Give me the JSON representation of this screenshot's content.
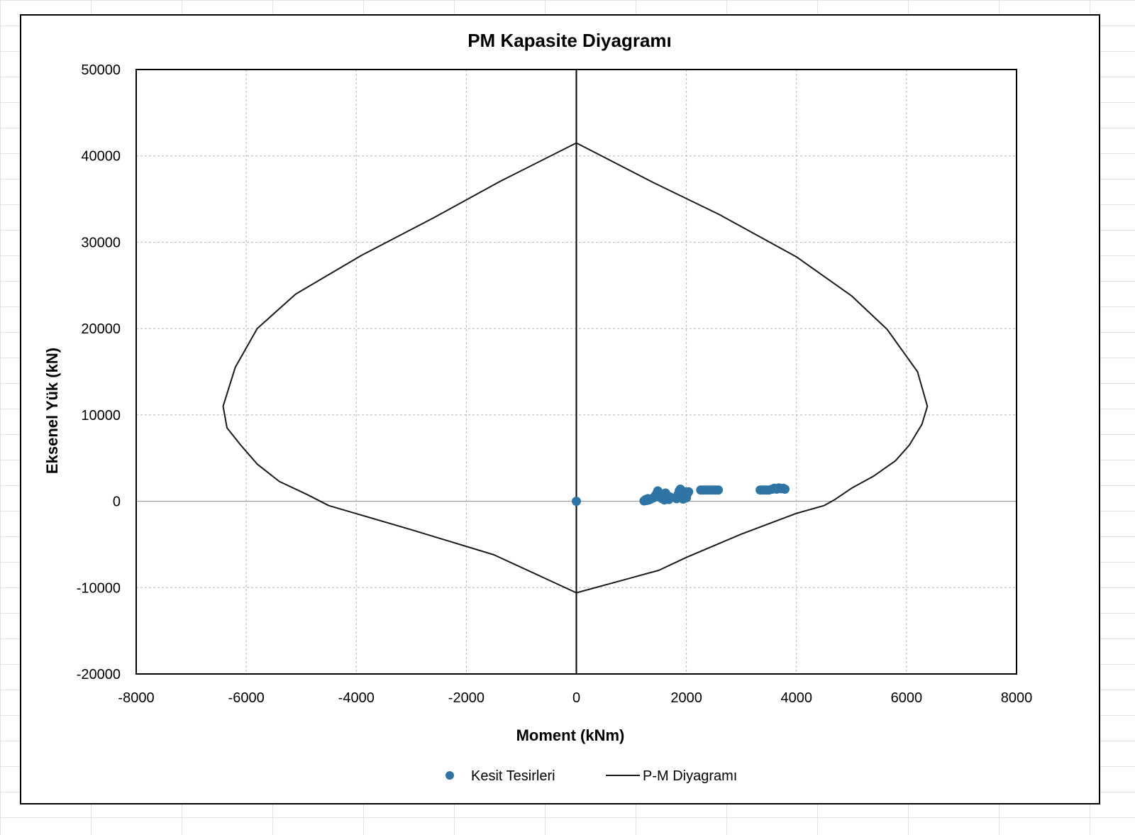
{
  "chart_data": {
    "type": "scatter",
    "title": "PM Kapasite Diyagramı",
    "xlabel": "Moment (kNm)",
    "ylabel": "Eksenel Yük (kN)",
    "xlim": [
      -8000,
      8000
    ],
    "ylim": [
      -20000,
      50000
    ],
    "x_ticks": [
      {
        "value": -8000,
        "label": "-8000"
      },
      {
        "value": -6000,
        "label": "-6000"
      },
      {
        "value": -4000,
        "label": "-4000"
      },
      {
        "value": -2000,
        "label": "-2000"
      },
      {
        "value": 0,
        "label": "0"
      },
      {
        "value": 2000,
        "label": "2000"
      },
      {
        "value": 4000,
        "label": "4000"
      },
      {
        "value": 6000,
        "label": "6000"
      },
      {
        "value": 8000,
        "label": "8000"
      }
    ],
    "y_ticks": [
      {
        "value": 50000,
        "label": "50000"
      },
      {
        "value": 40000,
        "label": "40000"
      },
      {
        "value": 30000,
        "label": "30000"
      },
      {
        "value": 20000,
        "label": "20000"
      },
      {
        "value": 10000,
        "label": "10000"
      },
      {
        "value": 0,
        "label": "0"
      },
      {
        "value": -10000,
        "label": "-10000"
      },
      {
        "value": -20000,
        "label": "-20000"
      }
    ],
    "grid": true,
    "legend_position": "bottom",
    "series": [
      {
        "name": "Kesit Tesirleri",
        "kind": "scatter",
        "color": "#2e75a6",
        "points": [
          [
            0,
            0
          ],
          [
            1230,
            50
          ],
          [
            1260,
            200
          ],
          [
            1280,
            100
          ],
          [
            1300,
            300
          ],
          [
            1320,
            150
          ],
          [
            1350,
            250
          ],
          [
            1400,
            400
          ],
          [
            1430,
            600
          ],
          [
            1460,
            900
          ],
          [
            1480,
            1200
          ],
          [
            1500,
            1000
          ],
          [
            1520,
            500
          ],
          [
            1540,
            800
          ],
          [
            1560,
            300
          ],
          [
            1580,
            700
          ],
          [
            1600,
            150
          ],
          [
            1620,
            950
          ],
          [
            1640,
            400
          ],
          [
            1660,
            600
          ],
          [
            1680,
            200
          ],
          [
            1700,
            500
          ],
          [
            1820,
            300
          ],
          [
            1850,
            800
          ],
          [
            1870,
            1200
          ],
          [
            1890,
            1400
          ],
          [
            1900,
            500
          ],
          [
            1920,
            1000
          ],
          [
            1940,
            250
          ],
          [
            1960,
            700
          ],
          [
            1980,
            1100
          ],
          [
            2000,
            400
          ],
          [
            2020,
            900
          ],
          [
            2040,
            1100
          ],
          [
            2260,
            1300
          ],
          [
            2300,
            1300
          ],
          [
            2340,
            1300
          ],
          [
            2380,
            1300
          ],
          [
            2420,
            1300
          ],
          [
            2460,
            1300
          ],
          [
            2500,
            1300
          ],
          [
            2540,
            1300
          ],
          [
            2580,
            1300
          ],
          [
            3340,
            1300
          ],
          [
            3380,
            1300
          ],
          [
            3420,
            1300
          ],
          [
            3460,
            1300
          ],
          [
            3500,
            1300
          ],
          [
            3560,
            1400
          ],
          [
            3600,
            1500
          ],
          [
            3640,
            1400
          ],
          [
            3680,
            1550
          ],
          [
            3720,
            1450
          ],
          [
            3760,
            1500
          ],
          [
            3790,
            1400
          ]
        ]
      },
      {
        "name": "P-M Diyagramı",
        "kind": "line",
        "color": "#1a1a1a",
        "points": [
          [
            0,
            41500
          ],
          [
            -1400,
            37000
          ],
          [
            -2600,
            32800
          ],
          [
            -3900,
            28500
          ],
          [
            -5100,
            24000
          ],
          [
            -5800,
            20000
          ],
          [
            -6200,
            15500
          ],
          [
            -6420,
            11000
          ],
          [
            -6350,
            8500
          ],
          [
            -6100,
            6500
          ],
          [
            -5800,
            4300
          ],
          [
            -5400,
            2300
          ],
          [
            -4900,
            800
          ],
          [
            -4500,
            -500
          ],
          [
            -3000,
            -3300
          ],
          [
            -1500,
            -6200
          ],
          [
            0,
            -10600
          ],
          [
            1500,
            -8000
          ],
          [
            2000,
            -6500
          ],
          [
            3000,
            -3800
          ],
          [
            4000,
            -1400
          ],
          [
            4500,
            -500
          ],
          [
            4700,
            200
          ],
          [
            5000,
            1500
          ],
          [
            5400,
            2900
          ],
          [
            5800,
            4700
          ],
          [
            6050,
            6500
          ],
          [
            6280,
            8900
          ],
          [
            6380,
            11000
          ],
          [
            6200,
            15000
          ],
          [
            5650,
            19900
          ],
          [
            5000,
            23800
          ],
          [
            4000,
            28300
          ],
          [
            2600,
            33200
          ],
          [
            1400,
            36900
          ],
          [
            0,
            41500
          ]
        ]
      }
    ]
  }
}
